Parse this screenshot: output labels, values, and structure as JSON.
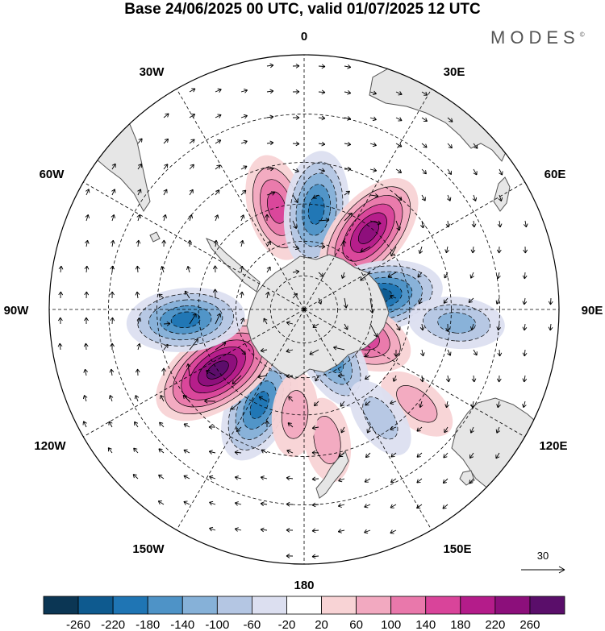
{
  "title": "Base 24/06/2025 00 UTC, valid 01/07/2025 12 UTC",
  "logo": "MODES",
  "logo_mark": "©",
  "projection": "south-polar-stereographic",
  "longitude_labels": [
    {
      "text": "0",
      "lon": 0
    },
    {
      "text": "30E",
      "lon": 30
    },
    {
      "text": "60E",
      "lon": 60
    },
    {
      "text": "90E",
      "lon": 90
    },
    {
      "text": "120E",
      "lon": 120
    },
    {
      "text": "150E",
      "lon": 150
    },
    {
      "text": "180",
      "lon": 180
    },
    {
      "text": "150W",
      "lon": -150
    },
    {
      "text": "120W",
      "lon": -120
    },
    {
      "text": "90W",
      "lon": -90
    },
    {
      "text": "60W",
      "lon": -60
    },
    {
      "text": "30W",
      "lon": -30
    }
  ],
  "vector_reference": {
    "value": "30"
  },
  "colorbar": {
    "ticks": [
      "-260",
      "-220",
      "-180",
      "-140",
      "-100",
      "-60",
      "-20",
      "20",
      "60",
      "100",
      "140",
      "180",
      "220",
      "260"
    ],
    "colors": [
      "#0b3654",
      "#0e5a8f",
      "#1f75b4",
      "#4e93c7",
      "#86b1d8",
      "#b4c6e3",
      "#dcdff0",
      "#ffffff",
      "#f8d3d5",
      "#f2a9c0",
      "#e978ab",
      "#d9449a",
      "#b41c8a",
      "#8c0f7b",
      "#5a0e6a"
    ]
  },
  "anomalies": [
    {
      "sign": "positive",
      "center_lon": -15,
      "center_lat": -45,
      "level": 3
    },
    {
      "sign": "negative",
      "center_lon": 7,
      "center_lat": -47,
      "level": 4
    },
    {
      "sign": "positive",
      "center_lon": 40,
      "center_lat": -47,
      "level": 5
    },
    {
      "sign": "negative",
      "center_lon": 80,
      "center_lat": -57,
      "level": 5
    },
    {
      "sign": "positive",
      "center_lon": 115,
      "center_lat": -65,
      "level": 4
    },
    {
      "sign": "negative",
      "center_lon": 95,
      "center_lat": -28,
      "level": 2
    },
    {
      "sign": "negative",
      "center_lon": 150,
      "center_lat": -65,
      "level": 3
    },
    {
      "sign": "negative",
      "center_lon": -155,
      "center_lat": -45,
      "level": 4
    },
    {
      "sign": "positive",
      "center_lon": -125,
      "center_lat": -45,
      "level": 6
    },
    {
      "sign": "negative",
      "center_lon": -95,
      "center_lat": -40,
      "level": 4
    },
    {
      "sign": "positive",
      "center_lon": 130,
      "center_lat": -30,
      "level": 1
    },
    {
      "sign": "negative",
      "center_lon": 145,
      "center_lat": -35,
      "level": 1
    },
    {
      "sign": "positive",
      "center_lon": 170,
      "center_lat": -35,
      "level": 1
    },
    {
      "sign": "positive",
      "center_lon": -175,
      "center_lat": -45,
      "level": 1
    }
  ]
}
